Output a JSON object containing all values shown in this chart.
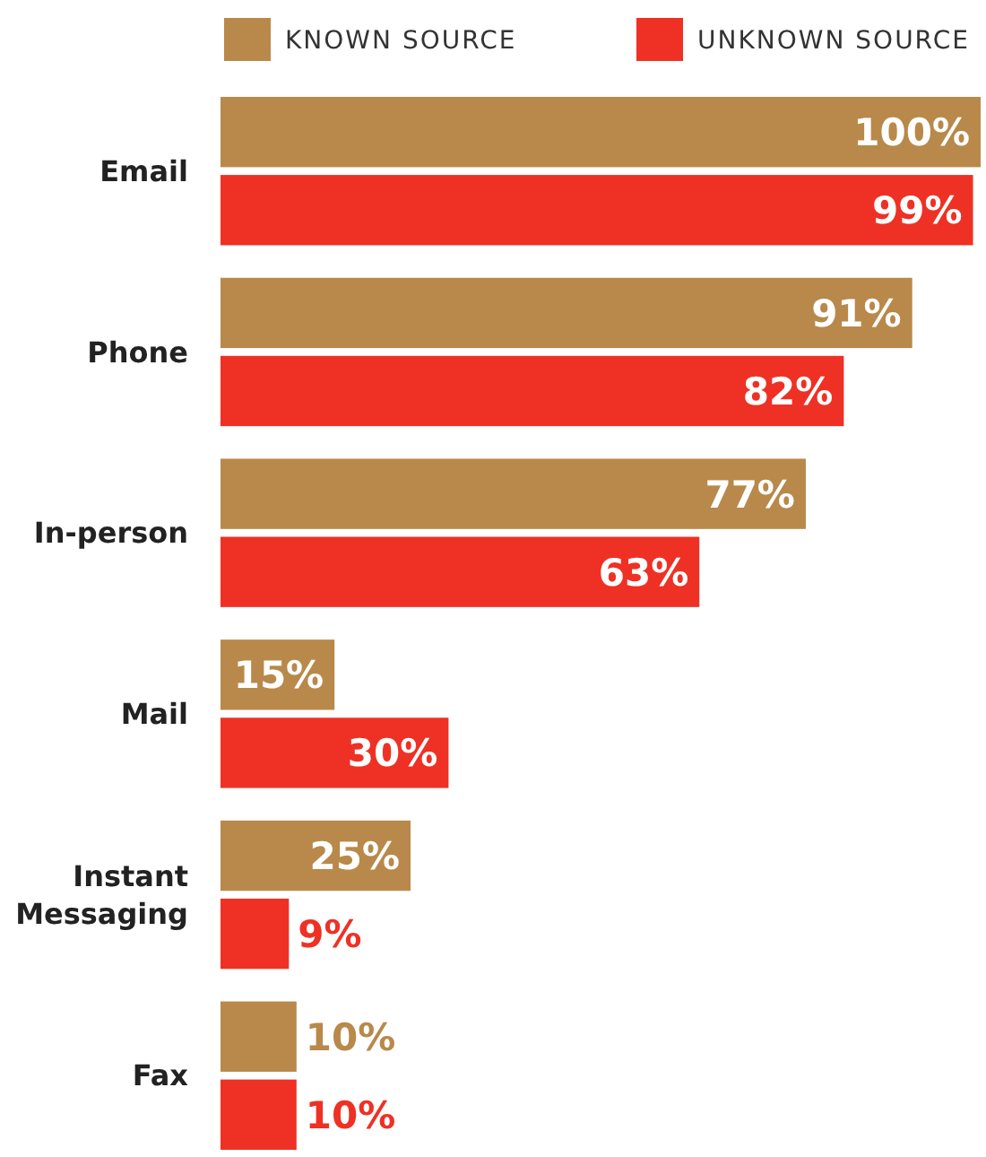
{
  "chart_data": {
    "type": "bar",
    "orientation": "horizontal",
    "categories": [
      "Email",
      "Phone",
      "In-person",
      "Mail",
      "Instant Messaging",
      "Fax"
    ],
    "series": [
      {
        "name": "KNOWN SOURCE",
        "color": "#b8894a",
        "values": [
          100,
          91,
          77,
          15,
          25,
          10
        ],
        "value_labels": [
          "100%",
          "91%",
          "77%",
          "15%",
          "25%",
          "10%"
        ]
      },
      {
        "name": "UNKNOWN SOURCE",
        "color": "#ee3124",
        "values": [
          99,
          82,
          63,
          30,
          9,
          10
        ],
        "value_labels": [
          "99%",
          "82%",
          "63%",
          "30%",
          "9%",
          "10%"
        ]
      }
    ],
    "legend": "top right",
    "grid": false
  }
}
